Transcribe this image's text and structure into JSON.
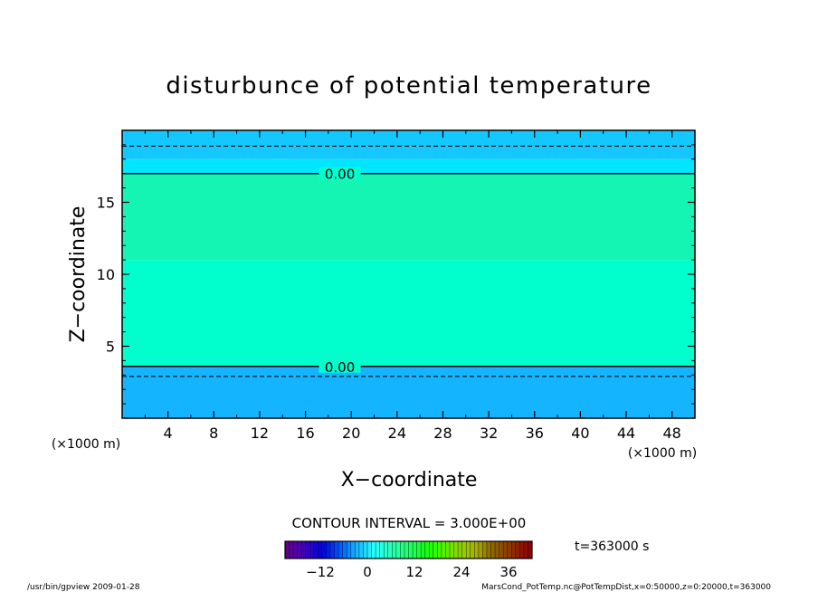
{
  "chart_data": {
    "type": "heatmap",
    "title": "disturbunce of potential temperature",
    "xlabel": "X−coordinate",
    "ylabel": "Z−coordinate",
    "x_unit_left": "(×1000 m)",
    "x_unit_right": "(×1000 m)",
    "xlim": [
      0,
      50
    ],
    "ylim": [
      0,
      20
    ],
    "x_ticks": [
      "4",
      "8",
      "12",
      "16",
      "20",
      "24",
      "28",
      "32",
      "36",
      "40",
      "44",
      "48"
    ],
    "y_ticks": [
      "5",
      "10",
      "15"
    ],
    "x_tick_values": [
      4,
      8,
      12,
      16,
      20,
      24,
      28,
      32,
      36,
      40,
      44,
      48
    ],
    "y_tick_values": [
      5,
      10,
      15
    ],
    "bands": [
      {
        "z0": 0,
        "z1": 3.6,
        "color": "#14b4ff"
      },
      {
        "z0": 3.6,
        "z1": 11,
        "color": "#00ffcc"
      },
      {
        "z0": 11,
        "z1": 17,
        "color": "#14f5b4"
      },
      {
        "z0": 17,
        "z1": 18,
        "color": "#00e6ff"
      },
      {
        "z0": 18,
        "z1": 20,
        "color": "#14c8ff"
      }
    ],
    "contours": [
      {
        "level": "0.00",
        "z": 17.0,
        "style": "solid",
        "label_x": 17.5
      },
      {
        "level": "0.00",
        "z": 3.6,
        "style": "solid",
        "label_x": 17.5
      },
      {
        "level": "",
        "z": 18.9,
        "style": "dashed"
      },
      {
        "level": "",
        "z": 2.9,
        "style": "dashed"
      }
    ],
    "contour_interval": "CONTOUR INTERVAL = 3.000E+00",
    "colorbar": {
      "ticks": [
        "−12",
        "0",
        "12",
        "24",
        "36"
      ],
      "tick_values": [
        -12,
        0,
        12,
        24,
        36
      ],
      "range": [
        -21,
        42
      ]
    },
    "time_label": "t=363000 s"
  },
  "footer": {
    "left": "/usr/bin/gpview   2009-01-28",
    "right": "MarsCond_PotTemp.nc@PotTempDist,x=0:50000,z=0:20000,t=363000"
  }
}
